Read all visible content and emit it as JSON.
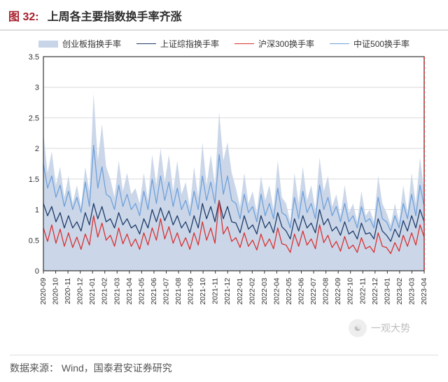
{
  "figure": {
    "label": "图 32:",
    "title": "上周各主要指数换手率齐涨",
    "source_label": "数据来源：",
    "source_value": "Wind，国泰君安证券研究",
    "watermark": "一观大势",
    "watermark_icon": "☯"
  },
  "chart": {
    "type": "line+area",
    "background_color": "#ffffff",
    "plot_border_color": "#333333",
    "grid_color": "#d9d9d9",
    "axis_font_size": 11,
    "xlabel_rotation": 90,
    "ylim": [
      0,
      3.5
    ],
    "yticks": [
      0,
      0.5,
      1,
      1.5,
      2,
      2.5,
      3,
      3.5
    ],
    "xticks": [
      "2020-09",
      "2020-10",
      "2020-11",
      "2020-12",
      "2021-01",
      "2021-02",
      "2021-03",
      "2021-04",
      "2021-05",
      "2021-06",
      "2021-07",
      "2021-08",
      "2021-09",
      "2021-10",
      "2021-11",
      "2021-12",
      "2022-01",
      "2022-02",
      "2022-03",
      "2022-04",
      "2022-05",
      "2022-06",
      "2022-07",
      "2022-08",
      "2022-09",
      "2022-10",
      "2022-11",
      "2022-12",
      "2023-01",
      "2023-02",
      "2023-03",
      "2023-04"
    ],
    "marker_line": {
      "x_index": 31,
      "color": "#d73232",
      "dash": "4,3",
      "width": 1.6
    },
    "legend": [
      {
        "key": "cyb",
        "label": "创业板指换手率",
        "style": "area",
        "color": "#c8d5e8"
      },
      {
        "key": "szc",
        "label": "上证综指换手率",
        "style": "line",
        "color": "#1f3b69",
        "width": 1.3
      },
      {
        "key": "hs300",
        "label": "沪深300换手率",
        "style": "line",
        "color": "#d73232",
        "width": 1.3
      },
      {
        "key": "zz500",
        "label": "中证500换手率",
        "style": "line",
        "color": "#6fa0da",
        "width": 1.3
      }
    ],
    "series": {
      "cyb": [
        2.25,
        1.6,
        1.95,
        1.4,
        1.7,
        1.2,
        1.55,
        1.1,
        1.4,
        1.05,
        1.7,
        1.3,
        2.9,
        1.8,
        2.4,
        1.7,
        1.5,
        1.2,
        1.8,
        1.3,
        1.6,
        1.25,
        1.35,
        1.1,
        1.6,
        1.15,
        1.9,
        1.4,
        2.0,
        1.45,
        1.9,
        1.3,
        1.8,
        1.25,
        1.45,
        1.05,
        1.7,
        1.2,
        2.1,
        1.4,
        1.9,
        1.4,
        2.6,
        1.8,
        2.1,
        1.6,
        1.35,
        1.05,
        1.6,
        1.1,
        1.3,
        0.95,
        1.55,
        1.15,
        1.4,
        1.0,
        1.8,
        1.2,
        1.1,
        0.8,
        1.6,
        1.1,
        1.7,
        1.15,
        1.4,
        1.0,
        1.85,
        1.3,
        1.55,
        1.05,
        1.25,
        0.9,
        1.4,
        0.95,
        1.1,
        0.8,
        1.3,
        0.9,
        1.0,
        0.8,
        1.55,
        1.1,
        0.95,
        0.75,
        1.1,
        0.8,
        1.4,
        0.95,
        1.6,
        1.1,
        1.85,
        1.3
      ],
      "zz500": [
        1.75,
        1.35,
        1.55,
        1.2,
        1.4,
        1.05,
        1.3,
        1.0,
        1.2,
        0.95,
        1.45,
        1.05,
        2.05,
        1.35,
        1.7,
        1.25,
        1.2,
        1.0,
        1.4,
        1.05,
        1.25,
        1.0,
        1.1,
        0.9,
        1.3,
        1.0,
        1.5,
        1.1,
        1.55,
        1.15,
        1.45,
        1.05,
        1.35,
        1.0,
        1.15,
        0.9,
        1.3,
        1.0,
        1.55,
        1.15,
        1.45,
        1.1,
        1.9,
        1.25,
        1.55,
        1.15,
        1.1,
        0.85,
        1.25,
        0.95,
        1.05,
        0.8,
        1.25,
        0.9,
        1.1,
        0.85,
        1.35,
        0.95,
        0.9,
        0.7,
        1.2,
        0.85,
        1.3,
        0.95,
        1.1,
        0.85,
        1.4,
        1.0,
        1.2,
        0.9,
        1.05,
        0.8,
        1.1,
        0.8,
        0.9,
        0.7,
        1.05,
        0.8,
        0.85,
        0.7,
        1.2,
        0.85,
        0.8,
        0.65,
        0.9,
        0.7,
        1.1,
        0.85,
        1.25,
        0.9,
        1.4,
        1.05
      ],
      "szc": [
        1.1,
        0.9,
        1.05,
        0.8,
        0.95,
        0.7,
        0.9,
        0.7,
        0.8,
        0.65,
        0.95,
        0.75,
        1.1,
        0.85,
        1.05,
        0.8,
        0.85,
        0.7,
        0.95,
        0.75,
        0.85,
        0.7,
        0.75,
        0.6,
        0.85,
        0.7,
        1.0,
        0.8,
        1.03,
        0.82,
        0.98,
        0.75,
        0.9,
        0.7,
        0.8,
        0.62,
        0.9,
        0.7,
        1.1,
        0.85,
        1.05,
        0.8,
        1.15,
        0.85,
        1.05,
        0.8,
        0.78,
        0.62,
        0.9,
        0.68,
        0.75,
        0.6,
        0.9,
        0.7,
        0.8,
        0.62,
        0.95,
        0.72,
        0.65,
        0.52,
        0.85,
        0.65,
        0.9,
        0.7,
        0.78,
        0.62,
        1.0,
        0.75,
        0.85,
        0.65,
        0.72,
        0.58,
        0.8,
        0.6,
        0.65,
        0.52,
        0.78,
        0.6,
        0.62,
        0.52,
        0.85,
        0.65,
        0.58,
        0.48,
        0.68,
        0.55,
        0.82,
        0.65,
        0.9,
        0.7,
        1.0,
        0.8
      ],
      "hs300": [
        0.7,
        0.48,
        0.75,
        0.45,
        0.68,
        0.4,
        0.62,
        0.38,
        0.55,
        0.35,
        0.6,
        0.42,
        0.9,
        0.55,
        0.78,
        0.5,
        0.58,
        0.4,
        0.7,
        0.44,
        0.6,
        0.4,
        0.52,
        0.35,
        0.62,
        0.42,
        0.7,
        0.5,
        0.85,
        0.52,
        0.72,
        0.45,
        0.62,
        0.4,
        0.54,
        0.35,
        0.62,
        0.42,
        0.8,
        0.5,
        0.7,
        0.45,
        1.15,
        0.6,
        0.72,
        0.48,
        0.54,
        0.38,
        0.62,
        0.4,
        0.5,
        0.34,
        0.6,
        0.4,
        0.52,
        0.36,
        0.7,
        0.44,
        0.42,
        0.3,
        0.6,
        0.4,
        0.65,
        0.42,
        0.52,
        0.36,
        0.75,
        0.46,
        0.58,
        0.38,
        0.48,
        0.32,
        0.56,
        0.36,
        0.42,
        0.3,
        0.54,
        0.36,
        0.4,
        0.3,
        0.62,
        0.4,
        0.38,
        0.28,
        0.46,
        0.32,
        0.58,
        0.4,
        0.62,
        0.42,
        0.75,
        0.55
      ]
    }
  }
}
